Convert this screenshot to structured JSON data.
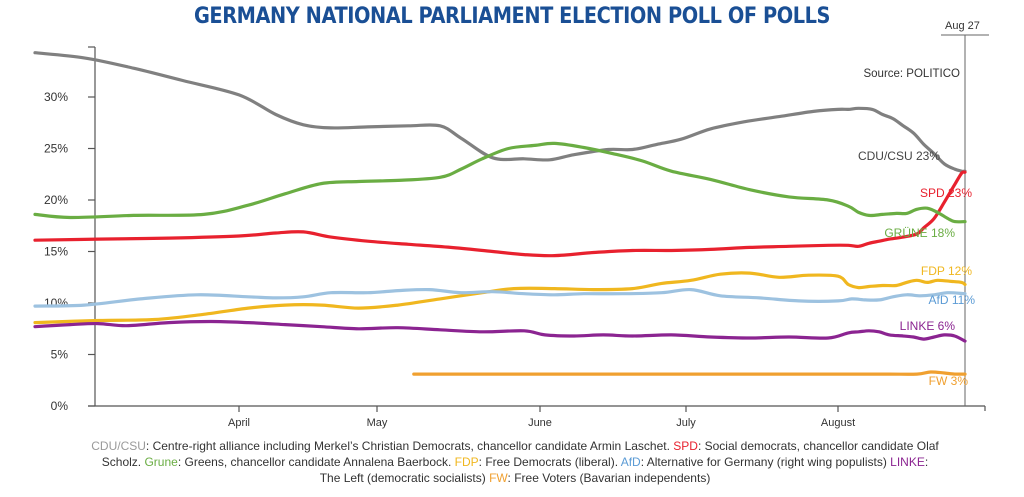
{
  "chart_data": {
    "type": "line",
    "title": "GERMANY NATIONAL PARLIAMENT ELECTION POLL OF POLLS",
    "source": "Source: POLITICO",
    "end_date_label": "Aug 27",
    "xlabel": "",
    "ylabel": "",
    "ylim": [
      0,
      35
    ],
    "yticks": [
      0,
      5,
      10,
      15,
      20,
      25,
      30
    ],
    "ytick_labels": [
      "0%",
      "5%",
      "10%",
      "15%",
      "20%",
      "25%",
      "30%"
    ],
    "xticks": [
      "April",
      "May",
      "June",
      "July",
      "August"
    ],
    "x_unit": "days relative to April 1",
    "grid": false,
    "legend": "inline end labels at right",
    "series": [
      {
        "name": "CDU/CSU",
        "color": "#808080",
        "end_label": "CDU/CSU 23%",
        "points": [
          [
            -29,
            34.3
          ],
          [
            -22,
            33.8
          ],
          [
            -15,
            32.8
          ],
          [
            -8,
            31.6
          ],
          [
            0,
            30.2
          ],
          [
            8,
            28.3
          ],
          [
            14,
            27.3
          ],
          [
            20,
            27.0
          ],
          [
            28,
            27.1
          ],
          [
            36,
            27.2
          ],
          [
            42,
            27.2
          ],
          [
            46,
            26.0
          ],
          [
            52,
            24.1
          ],
          [
            58,
            24.0
          ],
          [
            63,
            23.9
          ],
          [
            68,
            24.4
          ],
          [
            75,
            24.9
          ],
          [
            80,
            24.9
          ],
          [
            85,
            25.4
          ],
          [
            90,
            25.9
          ],
          [
            96,
            26.9
          ],
          [
            103,
            27.6
          ],
          [
            110,
            28.1
          ],
          [
            117,
            28.6
          ],
          [
            122,
            28.8
          ],
          [
            128,
            28.8
          ],
          [
            134,
            28.9
          ],
          [
            142,
            28.8
          ],
          [
            148,
            28.3
          ],
          [
            154,
            27.9
          ],
          [
            160,
            27.2
          ],
          [
            166,
            26.5
          ],
          [
            172,
            25.4
          ],
          [
            178,
            24.5
          ],
          [
            184,
            23.5
          ],
          [
            190,
            23.0
          ],
          [
            194,
            22.8
          ],
          [
            196,
            22.8
          ]
        ]
      },
      {
        "name": "SPD",
        "color": "#e8212e",
        "end_label": "SPD 23%",
        "points": [
          [
            -29,
            16.1
          ],
          [
            -20,
            16.2
          ],
          [
            -10,
            16.3
          ],
          [
            0,
            16.5
          ],
          [
            8,
            16.8
          ],
          [
            14,
            16.9
          ],
          [
            20,
            16.4
          ],
          [
            28,
            16.0
          ],
          [
            36,
            15.7
          ],
          [
            44,
            15.4
          ],
          [
            52,
            15.0
          ],
          [
            58,
            14.7
          ],
          [
            64,
            14.6
          ],
          [
            72,
            14.9
          ],
          [
            80,
            15.1
          ],
          [
            88,
            15.1
          ],
          [
            96,
            15.2
          ],
          [
            104,
            15.4
          ],
          [
            112,
            15.5
          ],
          [
            120,
            15.6
          ],
          [
            128,
            15.6
          ],
          [
            134,
            15.5
          ],
          [
            140,
            15.8
          ],
          [
            146,
            16.0
          ],
          [
            152,
            16.2
          ],
          [
            160,
            16.4
          ],
          [
            168,
            16.7
          ],
          [
            172,
            17.3
          ],
          [
            178,
            18.2
          ],
          [
            184,
            19.8
          ],
          [
            190,
            21.5
          ],
          [
            194,
            22.6
          ],
          [
            196,
            22.7
          ]
        ]
      },
      {
        "name": "GRÜNE",
        "color": "#6aad43",
        "end_label": "GRÜNE 18%",
        "points": [
          [
            -29,
            18.6
          ],
          [
            -24,
            18.3
          ],
          [
            -15,
            18.5
          ],
          [
            -5,
            18.6
          ],
          [
            2,
            19.5
          ],
          [
            10,
            20.6
          ],
          [
            18,
            21.6
          ],
          [
            26,
            21.8
          ],
          [
            34,
            21.9
          ],
          [
            42,
            22.2
          ],
          [
            46,
            23.0
          ],
          [
            50,
            24.0
          ],
          [
            55,
            25.0
          ],
          [
            60,
            25.3
          ],
          [
            64,
            25.5
          ],
          [
            70,
            25.1
          ],
          [
            76,
            24.5
          ],
          [
            82,
            23.8
          ],
          [
            88,
            22.8
          ],
          [
            96,
            22.0
          ],
          [
            104,
            21.0
          ],
          [
            112,
            20.3
          ],
          [
            120,
            20.0
          ],
          [
            128,
            19.4
          ],
          [
            134,
            18.8
          ],
          [
            140,
            18.5
          ],
          [
            148,
            18.6
          ],
          [
            156,
            18.7
          ],
          [
            162,
            18.7
          ],
          [
            168,
            19.1
          ],
          [
            174,
            19.2
          ],
          [
            180,
            18.8
          ],
          [
            186,
            18.2
          ],
          [
            190,
            17.9
          ],
          [
            196,
            17.9
          ]
        ]
      },
      {
        "name": "FDP",
        "color": "#f0b71f",
        "end_label": "FDP 12%",
        "points": [
          [
            -29,
            8.1
          ],
          [
            -20,
            8.3
          ],
          [
            -12,
            8.4
          ],
          [
            -5,
            8.9
          ],
          [
            2,
            9.5
          ],
          [
            10,
            9.8
          ],
          [
            18,
            9.8
          ],
          [
            26,
            9.5
          ],
          [
            34,
            9.8
          ],
          [
            42,
            10.4
          ],
          [
            50,
            11.0
          ],
          [
            56,
            11.4
          ],
          [
            64,
            11.4
          ],
          [
            72,
            11.3
          ],
          [
            80,
            11.4
          ],
          [
            86,
            11.9
          ],
          [
            92,
            12.2
          ],
          [
            98,
            12.8
          ],
          [
            104,
            12.9
          ],
          [
            110,
            12.5
          ],
          [
            116,
            12.7
          ],
          [
            122,
            12.6
          ],
          [
            128,
            11.8
          ],
          [
            134,
            11.5
          ],
          [
            140,
            11.6
          ],
          [
            148,
            11.7
          ],
          [
            156,
            11.7
          ],
          [
            162,
            12.0
          ],
          [
            168,
            12.2
          ],
          [
            174,
            12.0
          ],
          [
            180,
            12.2
          ],
          [
            188,
            12.1
          ],
          [
            194,
            12.0
          ],
          [
            196,
            11.8
          ]
        ]
      },
      {
        "name": "AfD",
        "color": "#9dc2e0",
        "end_label": "AfD 11%",
        "points": [
          [
            -29,
            9.7
          ],
          [
            -22,
            9.8
          ],
          [
            -14,
            10.4
          ],
          [
            -6,
            10.8
          ],
          [
            2,
            10.6
          ],
          [
            8,
            10.5
          ],
          [
            14,
            10.6
          ],
          [
            20,
            11.0
          ],
          [
            28,
            11.0
          ],
          [
            34,
            11.2
          ],
          [
            40,
            11.3
          ],
          [
            46,
            11.0
          ],
          [
            52,
            11.1
          ],
          [
            58,
            10.9
          ],
          [
            64,
            10.8
          ],
          [
            70,
            10.9
          ],
          [
            78,
            10.9
          ],
          [
            86,
            11.0
          ],
          [
            92,
            11.3
          ],
          [
            98,
            10.7
          ],
          [
            106,
            10.5
          ],
          [
            114,
            10.2
          ],
          [
            122,
            10.2
          ],
          [
            130,
            10.4
          ],
          [
            138,
            10.3
          ],
          [
            146,
            10.3
          ],
          [
            154,
            10.6
          ],
          [
            162,
            10.8
          ],
          [
            170,
            10.7
          ],
          [
            178,
            10.8
          ],
          [
            186,
            11.0
          ],
          [
            196,
            10.9
          ]
        ]
      },
      {
        "name": "LINKE",
        "color": "#8b2491",
        "end_label": "LINKE 6%",
        "points": [
          [
            -29,
            7.7
          ],
          [
            -24,
            7.9
          ],
          [
            -20,
            8.0
          ],
          [
            -16,
            7.8
          ],
          [
            -10,
            8.1
          ],
          [
            -4,
            8.2
          ],
          [
            2,
            8.1
          ],
          [
            10,
            7.9
          ],
          [
            18,
            7.7
          ],
          [
            26,
            7.5
          ],
          [
            34,
            7.6
          ],
          [
            42,
            7.4
          ],
          [
            50,
            7.2
          ],
          [
            58,
            7.3
          ],
          [
            62,
            6.9
          ],
          [
            68,
            6.8
          ],
          [
            74,
            6.9
          ],
          [
            80,
            6.8
          ],
          [
            88,
            6.9
          ],
          [
            96,
            6.7
          ],
          [
            104,
            6.6
          ],
          [
            112,
            6.7
          ],
          [
            120,
            6.6
          ],
          [
            128,
            7.1
          ],
          [
            134,
            7.2
          ],
          [
            140,
            7.3
          ],
          [
            146,
            7.2
          ],
          [
            152,
            6.9
          ],
          [
            160,
            6.8
          ],
          [
            166,
            6.7
          ],
          [
            172,
            6.5
          ],
          [
            178,
            6.7
          ],
          [
            184,
            6.9
          ],
          [
            190,
            6.8
          ],
          [
            196,
            6.3
          ]
        ]
      },
      {
        "name": "FW",
        "color": "#f0a030",
        "end_label": "FW 3%",
        "points": [
          [
            37,
            3.1
          ],
          [
            60,
            3.1
          ],
          [
            90,
            3.1
          ],
          [
            120,
            3.1
          ],
          [
            150,
            3.1
          ],
          [
            168,
            3.1
          ],
          [
            176,
            3.3
          ],
          [
            184,
            3.2
          ],
          [
            190,
            3.1
          ],
          [
            196,
            3.1
          ]
        ]
      }
    ]
  },
  "footnote": [
    {
      "term": "CDU/CSU",
      "color": "#9a9a9a",
      "text": ": Centre-right alliance including Merkel’s Christian Democrats, chancellor candidate Armin Laschet. "
    },
    {
      "term": "SPD",
      "color": "#e8212e",
      "text": ": Social democrats, chancellor candidate Olaf Scholz. "
    },
    {
      "term": "Grune",
      "color": "#6aad43",
      "text": ": Greens, chancellor candidate Annalena Baerbock. "
    },
    {
      "term": "FDP",
      "color": "#f0b71f",
      "text": ": Free Democrats (liberal). "
    },
    {
      "term": "AfD",
      "color": "#5b9bd5",
      "text": ": Alternative for Germany (right wing populists) "
    },
    {
      "term": "LINKE",
      "color": "#8b2491",
      "text": ": The Left (democratic socialists) "
    },
    {
      "term": "FW",
      "color": "#f0a030",
      "text": ": Free Voters (Bavarian independents)"
    }
  ]
}
